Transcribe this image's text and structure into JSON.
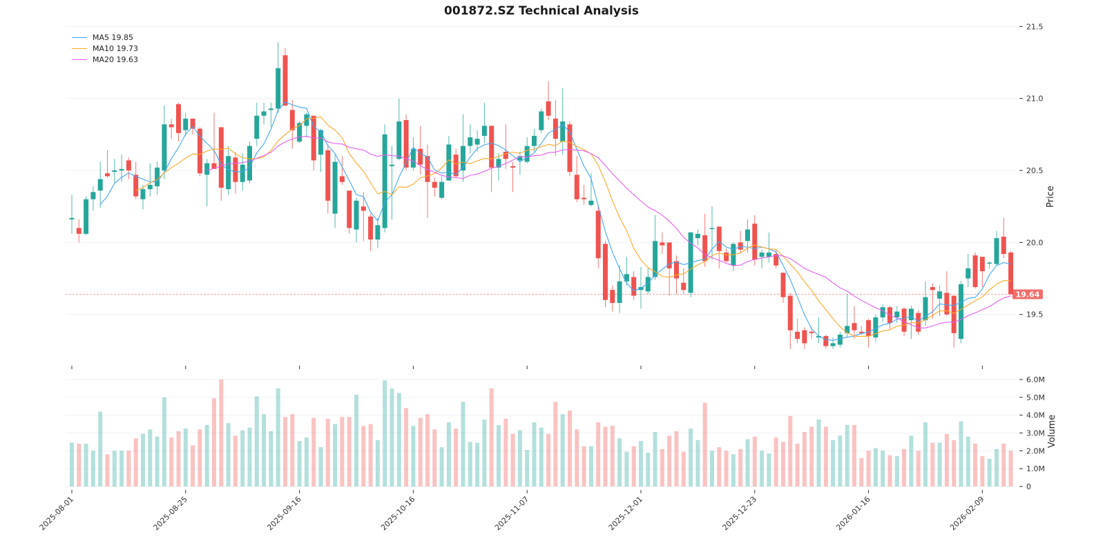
{
  "chart_data": {
    "type": "candlestick",
    "title": "001872.SZ Technical Analysis",
    "price_panel": {
      "ylabel": "Price",
      "ylim": [
        19.144,
        21.54
      ],
      "yticks": [
        19.5,
        20.0,
        20.5,
        21.0,
        21.5
      ],
      "ytick_labels": [
        "19.5",
        "20.0",
        "20.5",
        "21.0",
        "21.5"
      ],
      "last_price": 19.64,
      "last_price_label": "19.64",
      "grid": true
    },
    "volume_panel": {
      "ylabel": "Volume",
      "ylim": [
        0,
        6.15
      ],
      "unit": "M",
      "yticks": [
        0,
        1,
        2,
        3,
        4,
        5,
        6
      ],
      "ytick_labels": [
        "0",
        "1.0M",
        "2.0M",
        "3.0M",
        "4.0M",
        "5.0M",
        "6.0M"
      ]
    },
    "xtick_indices": [
      0,
      16,
      32,
      48,
      64,
      80,
      96,
      112,
      128
    ],
    "xtick_labels": [
      "2025-08-01",
      "2025-08-25",
      "2025-09-16",
      "2025-10-16",
      "2025-11-07",
      "2025-12-01",
      "2025-12-23",
      "2026-01-16",
      "2026-02-09"
    ],
    "legend": {
      "placement": "top-left",
      "entries": [
        {
          "label": "MA5 19.85",
          "period": 5,
          "color": "#42a5f5"
        },
        {
          "label": "MA10 19.73",
          "period": 10,
          "color": "#ffa726"
        },
        {
          "label": "MA20 19.63",
          "period": 20,
          "color": "#e85cf0"
        }
      ]
    },
    "colors": {
      "up": "#26a69a",
      "down": "#ef5350"
    },
    "ohlcv_fields": [
      "open",
      "high",
      "low",
      "close",
      "volume_M"
    ],
    "ohlcv": [
      [
        20.16,
        20.33,
        20.06,
        20.17,
        2.45
      ],
      [
        20.1,
        20.16,
        20.0,
        20.06,
        2.4
      ],
      [
        20.06,
        20.32,
        20.05,
        20.3,
        2.4
      ],
      [
        20.3,
        20.39,
        20.22,
        20.35,
        2.0
      ],
      [
        20.36,
        20.56,
        20.24,
        20.44,
        4.2
      ],
      [
        20.48,
        20.64,
        20.45,
        20.46,
        1.8
      ],
      [
        20.49,
        20.58,
        20.41,
        20.5,
        2.0
      ],
      [
        20.5,
        20.61,
        20.42,
        20.51,
        2.0
      ],
      [
        20.57,
        20.59,
        20.44,
        20.5,
        2.0
      ],
      [
        20.47,
        20.56,
        20.3,
        20.32,
        2.7
      ],
      [
        20.3,
        20.4,
        20.23,
        20.37,
        2.95
      ],
      [
        20.37,
        20.55,
        20.32,
        20.4,
        3.2
      ],
      [
        20.39,
        20.56,
        20.33,
        20.52,
        2.8
      ],
      [
        20.5,
        20.95,
        20.44,
        20.82,
        5.0
      ],
      [
        20.82,
        20.86,
        20.72,
        20.8,
        2.75
      ],
      [
        20.96,
        20.97,
        20.7,
        20.76,
        3.1
      ],
      [
        20.78,
        20.9,
        20.74,
        20.86,
        3.25
      ],
      [
        20.86,
        20.86,
        20.75,
        20.79,
        2.3
      ],
      [
        20.79,
        20.8,
        20.46,
        20.48,
        3.2
      ],
      [
        20.47,
        20.58,
        20.25,
        20.55,
        3.45
      ],
      [
        20.55,
        20.9,
        20.52,
        20.51,
        4.95
      ],
      [
        20.8,
        20.8,
        20.29,
        20.38,
        6.0
      ],
      [
        20.37,
        20.67,
        20.33,
        20.6,
        3.55
      ],
      [
        20.59,
        20.63,
        20.34,
        20.42,
        2.85
      ],
      [
        20.42,
        20.62,
        20.36,
        20.54,
        3.15
      ],
      [
        20.43,
        20.7,
        20.41,
        20.67,
        3.3
      ],
      [
        20.72,
        20.97,
        20.67,
        20.88,
        5.05
      ],
      [
        20.88,
        20.97,
        20.82,
        20.91,
        4.05
      ],
      [
        20.92,
        20.97,
        20.8,
        20.93,
        3.1
      ],
      [
        20.93,
        21.39,
        20.9,
        21.21,
        5.5
      ],
      [
        21.3,
        21.35,
        20.96,
        20.95,
        3.9
      ],
      [
        20.92,
        20.99,
        20.65,
        20.78,
        4.05
      ],
      [
        20.7,
        20.84,
        20.69,
        20.83,
        2.55
      ],
      [
        20.81,
        20.9,
        20.73,
        20.89,
        2.75
      ],
      [
        20.88,
        20.88,
        20.5,
        20.57,
        3.85
      ],
      [
        20.61,
        20.79,
        20.49,
        20.78,
        2.2
      ],
      [
        20.64,
        20.68,
        20.2,
        20.29,
        3.8
      ],
      [
        20.2,
        20.61,
        20.1,
        20.56,
        3.5
      ],
      [
        20.46,
        20.6,
        20.4,
        20.42,
        3.9
      ],
      [
        20.36,
        20.36,
        20.06,
        20.1,
        3.9
      ],
      [
        20.09,
        20.31,
        20.0,
        20.29,
        5.15
      ],
      [
        20.25,
        20.35,
        20.01,
        20.22,
        3.4
      ],
      [
        20.18,
        20.2,
        19.94,
        20.02,
        3.5
      ],
      [
        20.02,
        20.17,
        19.96,
        20.12,
        2.6
      ],
      [
        20.1,
        20.82,
        20.07,
        20.75,
        5.95
      ],
      [
        20.53,
        20.67,
        20.16,
        20.54,
        5.5
      ],
      [
        20.58,
        21.0,
        20.57,
        20.84,
        5.25
      ],
      [
        20.85,
        20.89,
        20.5,
        20.52,
        4.4
      ],
      [
        20.52,
        20.73,
        20.5,
        20.65,
        3.4
      ],
      [
        20.65,
        20.81,
        20.47,
        20.54,
        3.85
      ],
      [
        20.6,
        20.68,
        20.17,
        20.42,
        4.05
      ],
      [
        20.42,
        20.45,
        20.32,
        20.38,
        3.2
      ],
      [
        20.31,
        20.46,
        20.3,
        20.42,
        2.2
      ],
      [
        20.43,
        20.74,
        20.43,
        20.68,
        3.6
      ],
      [
        20.61,
        20.65,
        20.45,
        20.46,
        3.25
      ],
      [
        20.5,
        20.89,
        20.42,
        20.67,
        4.75
      ],
      [
        20.67,
        20.82,
        20.62,
        20.73,
        2.5
      ],
      [
        20.68,
        20.78,
        20.63,
        20.72,
        2.45
      ],
      [
        20.74,
        20.97,
        20.69,
        20.81,
        3.75
      ],
      [
        20.81,
        20.81,
        20.35,
        20.52,
        5.5
      ],
      [
        20.52,
        20.62,
        20.43,
        20.58,
        3.45
      ],
      [
        20.63,
        20.82,
        20.51,
        20.58,
        3.8
      ],
      [
        20.53,
        20.56,
        20.35,
        20.52,
        2.95
      ],
      [
        20.57,
        20.63,
        20.47,
        20.6,
        3.15
      ],
      [
        20.56,
        20.73,
        20.55,
        20.67,
        2.05
      ],
      [
        20.67,
        20.79,
        20.63,
        20.74,
        3.6
      ],
      [
        20.78,
        20.93,
        20.76,
        20.91,
        3.3
      ],
      [
        20.98,
        21.12,
        20.85,
        20.88,
        2.95
      ],
      [
        20.86,
        20.99,
        20.6,
        20.72,
        4.75
      ],
      [
        20.7,
        21.07,
        20.61,
        20.84,
        4.05
      ],
      [
        20.82,
        20.84,
        20.46,
        20.49,
        4.25
      ],
      [
        20.47,
        20.6,
        20.28,
        20.3,
        3.2
      ],
      [
        20.31,
        20.4,
        20.26,
        20.3,
        2.25
      ],
      [
        20.26,
        20.48,
        20.25,
        20.29,
        2.25
      ],
      [
        20.22,
        20.26,
        19.82,
        19.89,
        3.6
      ],
      [
        19.99,
        20.01,
        19.55,
        19.6,
        3.35
      ],
      [
        19.67,
        19.7,
        19.52,
        19.58,
        3.4
      ],
      [
        19.58,
        19.84,
        19.51,
        19.73,
        2.7
      ],
      [
        19.73,
        19.9,
        19.7,
        19.78,
        1.95
      ],
      [
        19.76,
        19.8,
        19.6,
        19.63,
        2.25
      ],
      [
        19.67,
        19.83,
        19.54,
        19.69,
        2.55
      ],
      [
        19.66,
        19.82,
        19.64,
        19.76,
        1.9
      ],
      [
        19.76,
        20.19,
        19.74,
        20.01,
        3.05
      ],
      [
        20.0,
        20.07,
        19.92,
        19.98,
        2.1
      ],
      [
        20.0,
        20.0,
        19.63,
        19.82,
        2.85
      ],
      [
        19.87,
        19.91,
        19.64,
        19.75,
        3.1
      ],
      [
        19.72,
        19.82,
        19.64,
        19.67,
        1.95
      ],
      [
        19.65,
        20.07,
        19.62,
        20.07,
        3.25
      ],
      [
        20.03,
        20.09,
        19.98,
        20.06,
        2.6
      ],
      [
        20.05,
        20.2,
        19.83,
        19.87,
        4.7
      ],
      [
        20.1,
        20.25,
        19.88,
        20.1,
        2.0
      ],
      [
        20.11,
        20.11,
        19.82,
        19.94,
        2.2
      ],
      [
        19.93,
        19.96,
        19.86,
        19.87,
        2.0
      ],
      [
        19.84,
        20.0,
        19.8,
        19.99,
        1.8
      ],
      [
        20.0,
        20.08,
        19.93,
        19.95,
        2.1
      ],
      [
        20.01,
        20.16,
        19.93,
        20.09,
        2.65
      ],
      [
        20.13,
        20.19,
        19.84,
        19.88,
        2.8
      ],
      [
        19.9,
        19.95,
        19.82,
        19.93,
        2.0
      ],
      [
        19.9,
        20.07,
        19.86,
        19.93,
        1.85
      ],
      [
        19.92,
        19.95,
        19.82,
        19.84,
        2.75
      ],
      [
        19.79,
        19.79,
        19.58,
        19.62,
        2.5
      ],
      [
        19.63,
        19.65,
        19.26,
        19.39,
        3.95
      ],
      [
        19.38,
        19.47,
        19.3,
        19.33,
        2.4
      ],
      [
        19.39,
        19.41,
        19.26,
        19.3,
        3.05
      ],
      [
        19.38,
        19.4,
        19.33,
        19.37,
        3.35
      ],
      [
        19.34,
        19.48,
        19.3,
        19.35,
        3.75
      ],
      [
        19.35,
        19.36,
        19.26,
        19.28,
        3.35
      ],
      [
        19.28,
        19.34,
        19.26,
        19.3,
        2.6
      ],
      [
        19.29,
        19.38,
        19.27,
        19.36,
        2.85
      ],
      [
        19.37,
        19.64,
        19.34,
        19.42,
        3.45
      ],
      [
        19.44,
        19.56,
        19.33,
        19.39,
        3.45
      ],
      [
        19.38,
        19.42,
        19.36,
        19.37,
        1.6
      ],
      [
        19.46,
        19.47,
        19.27,
        19.35,
        2.0
      ],
      [
        19.34,
        19.5,
        19.31,
        19.48,
        2.15
      ],
      [
        19.48,
        19.57,
        19.45,
        19.55,
        2.0
      ],
      [
        19.55,
        19.56,
        19.4,
        19.44,
        1.75
      ],
      [
        19.48,
        19.56,
        19.44,
        19.52,
        1.7
      ],
      [
        19.54,
        19.55,
        19.35,
        19.38,
        2.1
      ],
      [
        19.46,
        19.56,
        19.33,
        19.54,
        2.85
      ],
      [
        19.51,
        19.53,
        19.36,
        19.38,
        2.0
      ],
      [
        19.46,
        19.73,
        19.42,
        19.62,
        3.6
      ],
      [
        19.69,
        19.72,
        19.47,
        19.67,
        2.45
      ],
      [
        19.61,
        19.7,
        19.49,
        19.66,
        2.45
      ],
      [
        19.65,
        19.8,
        19.49,
        19.5,
        2.95
      ],
      [
        19.63,
        19.63,
        19.27,
        19.37,
        2.6
      ],
      [
        19.33,
        19.73,
        19.3,
        19.71,
        3.65
      ],
      [
        19.75,
        19.92,
        19.69,
        19.82,
        2.8
      ],
      [
        19.91,
        19.93,
        19.68,
        19.69,
        2.4
      ],
      [
        19.9,
        19.9,
        19.69,
        19.8,
        1.7
      ],
      [
        19.86,
        19.87,
        19.82,
        19.86,
        1.55
      ],
      [
        19.85,
        20.08,
        19.84,
        20.03,
        2.1
      ],
      [
        20.04,
        20.17,
        19.89,
        19.92,
        2.4
      ],
      [
        19.93,
        19.94,
        19.64,
        19.64,
        2.0
      ]
    ]
  }
}
